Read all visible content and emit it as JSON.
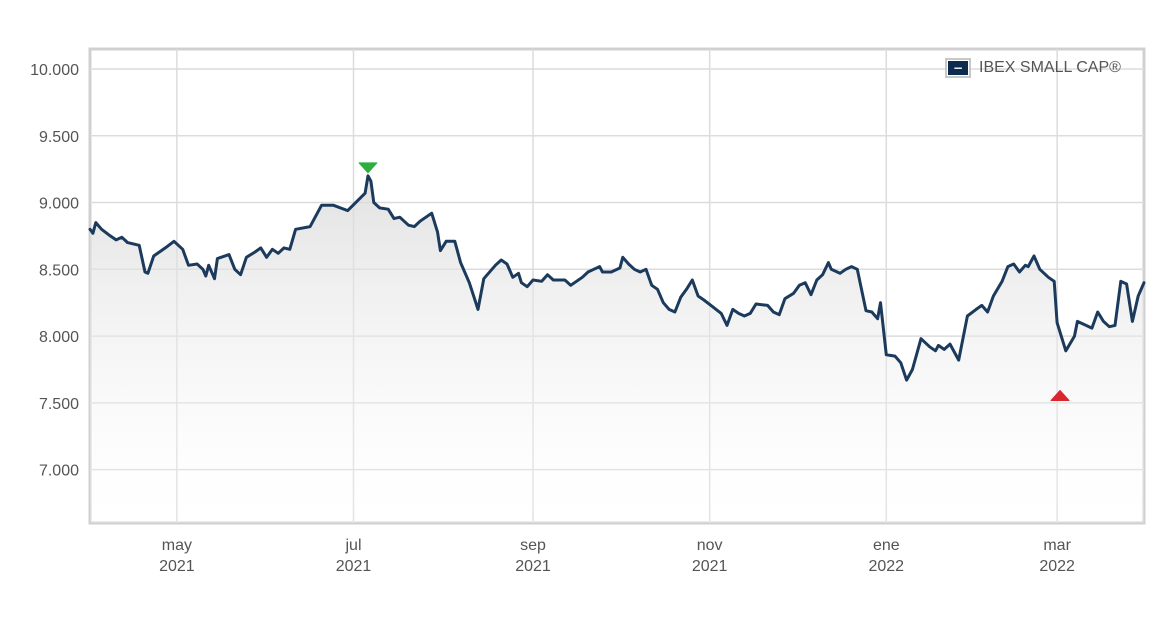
{
  "chart_data": {
    "type": "area",
    "title": "",
    "xlabel": "",
    "ylabel": "",
    "ylim": [
      6600,
      10150
    ],
    "xlim": [
      "2021-04-01",
      "2022-03-31"
    ],
    "y_ticks": [
      "10.000",
      "9.500",
      "9.000",
      "8.500",
      "8.000",
      "7.500",
      "7.000"
    ],
    "x_ticks": [
      {
        "date": "2021-05-01",
        "month": "may",
        "year": "2021"
      },
      {
        "date": "2021-07-01",
        "month": "jul",
        "year": "2021"
      },
      {
        "date": "2021-09-01",
        "month": "sep",
        "year": "2021"
      },
      {
        "date": "2021-11-01",
        "month": "nov",
        "year": "2021"
      },
      {
        "date": "2022-01-01",
        "month": "ene",
        "year": "2022"
      },
      {
        "date": "2022-03-01",
        "month": "mar",
        "year": "2022"
      }
    ],
    "grid": true,
    "legend_position": "top-right",
    "series": [
      {
        "name": "IBEX SMALL CAP®",
        "color": "#1b3a5c",
        "points": [
          [
            "2021-04-01",
            8800
          ],
          [
            "2021-04-02",
            8770
          ],
          [
            "2021-04-03",
            8850
          ],
          [
            "2021-04-05",
            8800
          ],
          [
            "2021-04-08",
            8750
          ],
          [
            "2021-04-10",
            8720
          ],
          [
            "2021-04-12",
            8740
          ],
          [
            "2021-04-14",
            8700
          ],
          [
            "2021-04-18",
            8680
          ],
          [
            "2021-04-20",
            8480
          ],
          [
            "2021-04-21",
            8470
          ],
          [
            "2021-04-23",
            8600
          ],
          [
            "2021-04-27",
            8660
          ],
          [
            "2021-04-30",
            8710
          ],
          [
            "2021-05-03",
            8650
          ],
          [
            "2021-05-05",
            8530
          ],
          [
            "2021-05-08",
            8540
          ],
          [
            "2021-05-10",
            8500
          ],
          [
            "2021-05-11",
            8450
          ],
          [
            "2021-05-12",
            8530
          ],
          [
            "2021-05-14",
            8430
          ],
          [
            "2021-05-15",
            8580
          ],
          [
            "2021-05-19",
            8610
          ],
          [
            "2021-05-21",
            8500
          ],
          [
            "2021-05-23",
            8460
          ],
          [
            "2021-05-25",
            8590
          ],
          [
            "2021-05-28",
            8630
          ],
          [
            "2021-05-30",
            8660
          ],
          [
            "2021-06-01",
            8590
          ],
          [
            "2021-06-03",
            8650
          ],
          [
            "2021-06-05",
            8620
          ],
          [
            "2021-06-07",
            8660
          ],
          [
            "2021-06-09",
            8650
          ],
          [
            "2021-06-11",
            8800
          ],
          [
            "2021-06-16",
            8820
          ],
          [
            "2021-06-20",
            8980
          ],
          [
            "2021-06-24",
            8980
          ],
          [
            "2021-06-29",
            8940
          ],
          [
            "2021-07-05",
            9070
          ],
          [
            "2021-07-06",
            9200
          ],
          [
            "2021-07-07",
            9160
          ],
          [
            "2021-07-08",
            9000
          ],
          [
            "2021-07-10",
            8960
          ],
          [
            "2021-07-13",
            8950
          ],
          [
            "2021-07-15",
            8880
          ],
          [
            "2021-07-17",
            8890
          ],
          [
            "2021-07-20",
            8830
          ],
          [
            "2021-07-22",
            8820
          ],
          [
            "2021-07-24",
            8860
          ],
          [
            "2021-07-28",
            8920
          ],
          [
            "2021-07-30",
            8780
          ],
          [
            "2021-07-31",
            8640
          ],
          [
            "2021-08-02",
            8710
          ],
          [
            "2021-08-05",
            8710
          ],
          [
            "2021-08-07",
            8550
          ],
          [
            "2021-08-10",
            8400
          ],
          [
            "2021-08-13",
            8200
          ],
          [
            "2021-08-15",
            8430
          ],
          [
            "2021-08-19",
            8530
          ],
          [
            "2021-08-21",
            8570
          ],
          [
            "2021-08-23",
            8540
          ],
          [
            "2021-08-25",
            8440
          ],
          [
            "2021-08-27",
            8470
          ],
          [
            "2021-08-28",
            8400
          ],
          [
            "2021-08-30",
            8370
          ],
          [
            "2021-09-01",
            8420
          ],
          [
            "2021-09-04",
            8410
          ],
          [
            "2021-09-06",
            8460
          ],
          [
            "2021-09-08",
            8420
          ],
          [
            "2021-09-12",
            8420
          ],
          [
            "2021-09-14",
            8380
          ],
          [
            "2021-09-18",
            8440
          ],
          [
            "2021-09-20",
            8480
          ],
          [
            "2021-09-22",
            8500
          ],
          [
            "2021-09-24",
            8520
          ],
          [
            "2021-09-25",
            8480
          ],
          [
            "2021-09-28",
            8480
          ],
          [
            "2021-10-01",
            8510
          ],
          [
            "2021-10-02",
            8590
          ],
          [
            "2021-10-04",
            8540
          ],
          [
            "2021-10-06",
            8500
          ],
          [
            "2021-10-08",
            8480
          ],
          [
            "2021-10-10",
            8500
          ],
          [
            "2021-10-12",
            8380
          ],
          [
            "2021-10-14",
            8350
          ],
          [
            "2021-10-16",
            8250
          ],
          [
            "2021-10-18",
            8200
          ],
          [
            "2021-10-20",
            8180
          ],
          [
            "2021-10-22",
            8290
          ],
          [
            "2021-10-24",
            8350
          ],
          [
            "2021-10-26",
            8420
          ],
          [
            "2021-10-28",
            8300
          ],
          [
            "2021-10-30",
            8270
          ],
          [
            "2021-11-02",
            8220
          ],
          [
            "2021-11-05",
            8170
          ],
          [
            "2021-11-07",
            8080
          ],
          [
            "2021-11-09",
            8200
          ],
          [
            "2021-11-11",
            8170
          ],
          [
            "2021-11-13",
            8150
          ],
          [
            "2021-11-15",
            8170
          ],
          [
            "2021-11-17",
            8240
          ],
          [
            "2021-11-21",
            8230
          ],
          [
            "2021-11-23",
            8180
          ],
          [
            "2021-11-25",
            8160
          ],
          [
            "2021-11-27",
            8280
          ],
          [
            "2021-11-30",
            8320
          ],
          [
            "2021-12-02",
            8380
          ],
          [
            "2021-12-04",
            8400
          ],
          [
            "2021-12-06",
            8310
          ],
          [
            "2021-12-08",
            8420
          ],
          [
            "2021-12-10",
            8460
          ],
          [
            "2021-12-12",
            8550
          ],
          [
            "2021-12-13",
            8500
          ],
          [
            "2021-12-16",
            8470
          ],
          [
            "2021-12-18",
            8500
          ],
          [
            "2021-12-20",
            8520
          ],
          [
            "2021-12-22",
            8500
          ],
          [
            "2021-12-25",
            8190
          ],
          [
            "2021-12-27",
            8180
          ],
          [
            "2021-12-29",
            8130
          ],
          [
            "2021-12-30",
            8250
          ],
          [
            "2022-01-01",
            7860
          ],
          [
            "2022-01-04",
            7850
          ],
          [
            "2022-01-06",
            7800
          ],
          [
            "2022-01-08",
            7670
          ],
          [
            "2022-01-10",
            7750
          ],
          [
            "2022-01-13",
            7980
          ],
          [
            "2022-01-16",
            7920
          ],
          [
            "2022-01-18",
            7890
          ],
          [
            "2022-01-19",
            7930
          ],
          [
            "2022-01-21",
            7900
          ],
          [
            "2022-01-23",
            7940
          ],
          [
            "2022-01-26",
            7820
          ],
          [
            "2022-01-29",
            8150
          ],
          [
            "2022-02-01",
            8200
          ],
          [
            "2022-02-03",
            8230
          ],
          [
            "2022-02-05",
            8180
          ],
          [
            "2022-02-07",
            8300
          ],
          [
            "2022-02-10",
            8410
          ],
          [
            "2022-02-12",
            8520
          ],
          [
            "2022-02-14",
            8540
          ],
          [
            "2022-02-16",
            8480
          ],
          [
            "2022-02-18",
            8530
          ],
          [
            "2022-02-19",
            8520
          ],
          [
            "2022-02-21",
            8600
          ],
          [
            "2022-02-23",
            8500
          ],
          [
            "2022-02-26",
            8440
          ],
          [
            "2022-02-28",
            8410
          ],
          [
            "2022-03-01",
            8100
          ],
          [
            "2022-03-04",
            7890
          ],
          [
            "2022-03-07",
            8000
          ],
          [
            "2022-03-08",
            8110
          ],
          [
            "2022-03-11",
            8080
          ],
          [
            "2022-03-13",
            8060
          ],
          [
            "2022-03-15",
            8180
          ],
          [
            "2022-03-17",
            8110
          ],
          [
            "2022-03-19",
            8070
          ],
          [
            "2022-03-21",
            8080
          ],
          [
            "2022-03-23",
            8410
          ],
          [
            "2022-03-25",
            8390
          ],
          [
            "2022-03-27",
            8110
          ],
          [
            "2022-03-29",
            8300
          ],
          [
            "2022-03-31",
            8400
          ]
        ]
      }
    ],
    "markers": [
      {
        "type": "max",
        "date": "2021-07-06",
        "value": 9200,
        "color": "#2eae3c"
      },
      {
        "type": "min",
        "date": "2022-03-02",
        "value": 7630,
        "color": "#d9262f"
      }
    ]
  },
  "legend": {
    "label": "IBEX SMALL CAP®",
    "toggle_symbol": "−",
    "swatch_color": "#0d2b4f"
  }
}
